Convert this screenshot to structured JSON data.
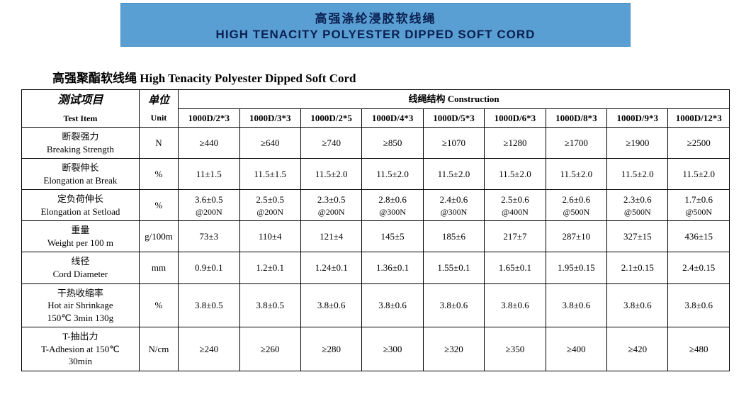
{
  "banner": {
    "cn": "高强涤纶浸胶软线绳",
    "en": "HIGH TENACITY POLYESTER DIPPED SOFT CORD",
    "bg": "#5a9fd4",
    "fg": "#0a2050"
  },
  "subtitle": "高强聚酯软线绳  High Tenacity Polyester Dipped Soft Cord",
  "table": {
    "header": {
      "test_cn": "测试项目",
      "test_en": "Test Item",
      "unit_cn": "单位",
      "unit_en": "Unit",
      "construction": "线绳结构 Construction"
    },
    "columns": [
      "1000D/2*3",
      "1000D/3*3",
      "1000D/2*5",
      "1000D/4*3",
      "1000D/5*3",
      "1000D/6*3",
      "1000D/8*3",
      "1000D/9*3",
      "1000D/12*3"
    ],
    "rows": [
      {
        "label_cn": "断裂强力",
        "label_en": "Breaking Strength",
        "unit": "N",
        "cells": [
          "≥440",
          "≥640",
          "≥740",
          "≥850",
          "≥1070",
          "≥1280",
          "≥1700",
          "≥1900",
          "≥2500"
        ]
      },
      {
        "label_cn": "断裂伸长",
        "label_en": "Elongation at Break",
        "unit": "%",
        "cells": [
          "11±1.5",
          "11.5±1.5",
          "11.5±2.0",
          "11.5±2.0",
          "11.5±2.0",
          "11.5±2.0",
          "11.5±2.0",
          "11.5±2.0",
          "11.5±2.0"
        ]
      },
      {
        "label_cn": "定负荷伸长",
        "label_en": "Elongation at Setload",
        "unit": "%",
        "cells_top": [
          "3.6±0.5",
          "2.5±0.5",
          "2.3±0.5",
          "2.8±0.6",
          "2.4±0.6",
          "2.5±0.6",
          "2.6±0.6",
          "2.3±0.6",
          "1.7±0.6"
        ],
        "cells_bot": [
          "@200N",
          "@200N",
          "@200N",
          "@300N",
          "@300N",
          "@400N",
          "@500N",
          "@500N",
          "@500N"
        ]
      },
      {
        "label_cn": "重量",
        "label_en": "Weight per 100 m",
        "unit": "g/100m",
        "cells": [
          "73±3",
          "110±4",
          "121±4",
          "145±5",
          "185±6",
          "217±7",
          "287±10",
          "327±15",
          "436±15"
        ]
      },
      {
        "label_cn": "线径",
        "label_en": "Cord Diameter",
        "unit": "mm",
        "cells": [
          "0.9±0.1",
          "1.2±0.1",
          "1.24±0.1",
          "1.36±0.1",
          "1.55±0.1",
          "1.65±0.1",
          "1.95±0.15",
          "2.1±0.15",
          "2.4±0.15"
        ]
      },
      {
        "label_cn": "干热收缩率",
        "label_en": "Hot air Shrinkage",
        "label_extra": "150℃ 3min 130g",
        "unit": "%",
        "cells": [
          "3.8±0.5",
          "3.8±0.5",
          "3.8±0.6",
          "3.8±0.6",
          "3.8±0.6",
          "3.8±0.6",
          "3.8±0.6",
          "3.8±0.6",
          "3.8±0.6"
        ]
      },
      {
        "label_cn": "T-抽出力",
        "label_en": "T-Adhesion at 150℃",
        "label_extra": "30min",
        "unit": "N/cm",
        "cells": [
          "≥240",
          "≥260",
          "≥280",
          "≥300",
          "≥320",
          "≥350",
          "≥400",
          "≥420",
          "≥480"
        ]
      }
    ]
  }
}
